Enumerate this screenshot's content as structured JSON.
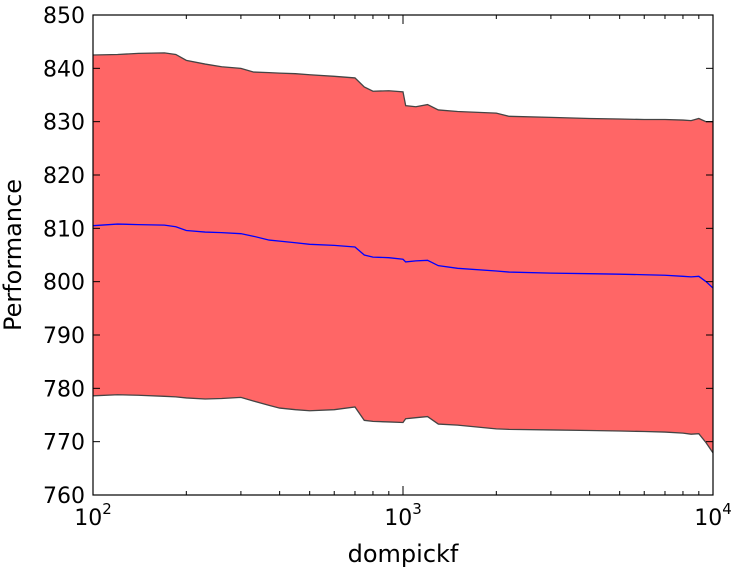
{
  "chart_data": {
    "type": "area",
    "xlabel": "dompickf",
    "ylabel": "Performance",
    "xscale": "log",
    "xlim": [
      100,
      10000
    ],
    "ylim": [
      760,
      850
    ],
    "y_ticks": [
      760,
      770,
      780,
      790,
      800,
      810,
      820,
      830,
      840,
      850
    ],
    "x_ticks": [
      {
        "value": 100,
        "base": "10",
        "exp": "2"
      },
      {
        "value": 1000,
        "base": "10",
        "exp": "3"
      },
      {
        "value": 10000,
        "base": "10",
        "exp": "4"
      }
    ],
    "fill_color": "#ff6666",
    "edge_color": "#444444",
    "line_color": "#0000ff",
    "grid": false,
    "series": [
      {
        "x": [
          100,
          120,
          140,
          170,
          185,
          200,
          230,
          260,
          300,
          330,
          370,
          400,
          450,
          500,
          600,
          700,
          750,
          800,
          900,
          1000,
          1020,
          1100,
          1200,
          1300,
          1500,
          2000,
          2200,
          3000,
          4000,
          5000,
          6000,
          7000,
          8000,
          8500,
          9000,
          9500,
          10000
        ],
        "mean": [
          810.5,
          810.8,
          810.7,
          810.6,
          810.3,
          809.6,
          809.3,
          809.2,
          809.0,
          808.5,
          807.8,
          807.6,
          807.3,
          807.0,
          806.8,
          806.5,
          805.0,
          804.6,
          804.5,
          804.2,
          803.7,
          803.9,
          804.0,
          803.0,
          802.5,
          802.0,
          801.8,
          801.6,
          801.5,
          801.4,
          801.3,
          801.2,
          801.0,
          800.9,
          801.0,
          800.0,
          798.8
        ],
        "upper": [
          842.5,
          842.6,
          842.8,
          842.9,
          842.6,
          841.5,
          840.8,
          840.3,
          840.0,
          839.3,
          839.2,
          839.1,
          839.0,
          838.8,
          838.5,
          838.2,
          836.5,
          835.7,
          835.8,
          835.6,
          833.0,
          832.8,
          833.2,
          832.2,
          831.9,
          831.6,
          831.0,
          830.8,
          830.6,
          830.5,
          830.4,
          830.4,
          830.3,
          830.2,
          830.6,
          830.0,
          830.0
        ],
        "lower": [
          778.6,
          778.8,
          778.7,
          778.5,
          778.4,
          778.2,
          778.0,
          778.1,
          778.3,
          777.6,
          776.8,
          776.3,
          776.0,
          775.8,
          776.0,
          776.5,
          774.0,
          773.8,
          773.7,
          773.6,
          774.3,
          774.5,
          774.7,
          773.3,
          773.1,
          772.4,
          772.3,
          772.2,
          772.1,
          772.0,
          771.9,
          771.8,
          771.6,
          771.4,
          771.5,
          769.8,
          767.9
        ]
      }
    ]
  }
}
